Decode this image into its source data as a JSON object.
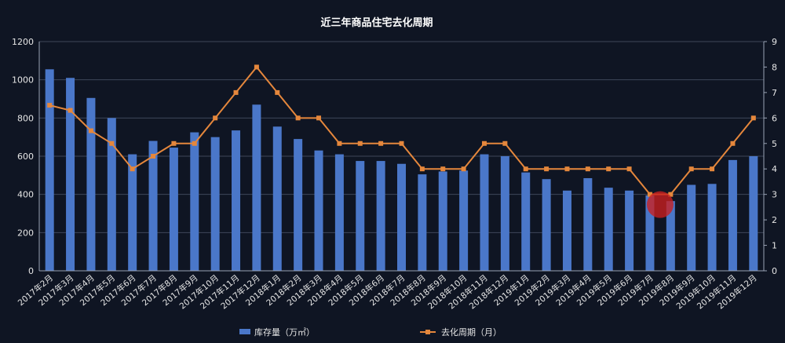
{
  "chart_data": {
    "type": "bar+line",
    "title": "近三年商品住宅去化周期",
    "categories": [
      "2017年2月",
      "2017年3月",
      "2017年4月",
      "2017年5月",
      "2017年6月",
      "2017年7月",
      "2017年8月",
      "2017年9月",
      "2017年10月",
      "2017年11月",
      "2017年12月",
      "2018年1月",
      "2018年2月",
      "2018年3月",
      "2018年4月",
      "2018年5月",
      "2018年6月",
      "2018年7月",
      "2018年8月",
      "2018年9月",
      "2018年10月",
      "2018年11月",
      "2018年12月",
      "2019年1月",
      "2019年2月",
      "2019年3月",
      "2019年4月",
      "2019年5月",
      "2019年6月",
      "2019年7月",
      "2019年8月",
      "2019年9月",
      "2019年10月",
      "2019年11月",
      "2019年12月"
    ],
    "series": [
      {
        "name": "库存量（万㎡）",
        "type": "bar",
        "axis": "left",
        "color": "#4a77c9",
        "values": [
          1055,
          1010,
          905,
          800,
          610,
          680,
          645,
          725,
          700,
          735,
          870,
          755,
          690,
          630,
          610,
          575,
          575,
          560,
          505,
          520,
          525,
          610,
          600,
          515,
          480,
          420,
          485,
          435,
          420,
          395,
          365,
          450,
          455,
          580,
          600
        ]
      },
      {
        "name": "去化周期（月）",
        "type": "line",
        "axis": "right",
        "color": "#e5873c",
        "values": [
          6.5,
          6.3,
          5.5,
          5.0,
          4.0,
          4.5,
          5.0,
          5.0,
          6.0,
          7.0,
          8.0,
          7.0,
          6.0,
          6.0,
          5.0,
          5.0,
          5.0,
          5.0,
          4.0,
          4.0,
          4.0,
          5.0,
          5.0,
          4.0,
          4.0,
          4.0,
          4.0,
          4.0,
          4.0,
          3.0,
          3.0,
          4.0,
          4.0,
          5.0,
          6.0
        ]
      }
    ],
    "y_left": {
      "min": 0,
      "max": 1200,
      "ticks": [
        "0",
        "200",
        "400",
        "600",
        "800",
        "1000",
        "1200"
      ]
    },
    "y_right": {
      "min": 0,
      "max": 9,
      "ticks": [
        "0",
        "1",
        "2",
        "3",
        "4",
        "5",
        "6",
        "7",
        "8",
        "9"
      ]
    },
    "grid": true,
    "legend_position": "bottom",
    "highlight": {
      "category": "2019年7月",
      "color": "#cc1f1f"
    },
    "background_color": "#0f1523",
    "gridline_color": "#3f4759"
  }
}
